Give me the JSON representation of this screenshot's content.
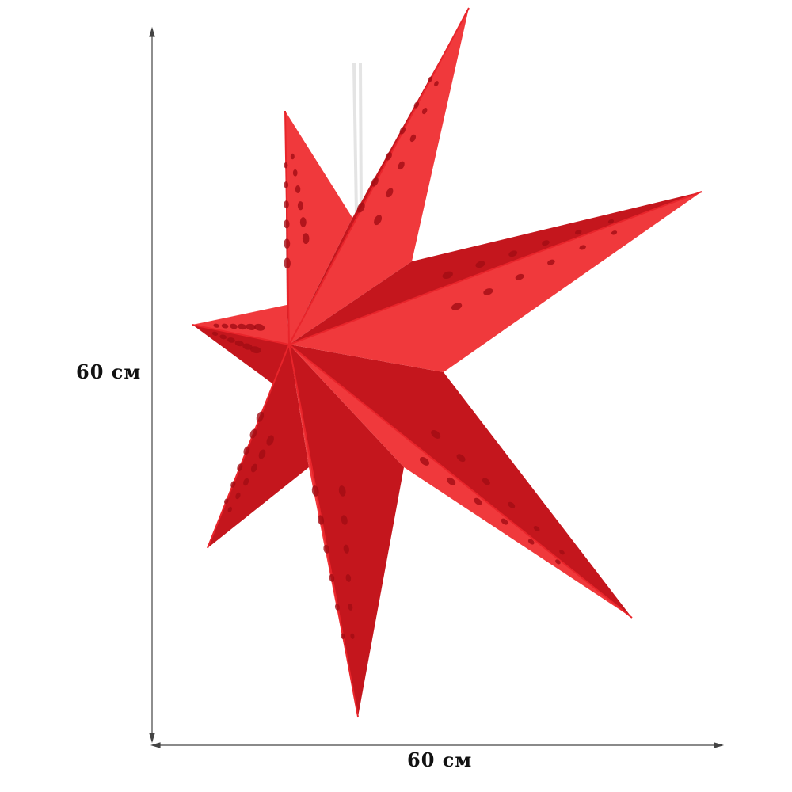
{
  "product": {
    "description_colors": {
      "star": "#e8252b",
      "star_dark": "#c4161d",
      "star_light": "#f0393c",
      "cutout": "#a30d14",
      "string": "#e6e6e6"
    }
  },
  "dimensions": {
    "height_label": "60 см",
    "width_label": "60 см"
  }
}
